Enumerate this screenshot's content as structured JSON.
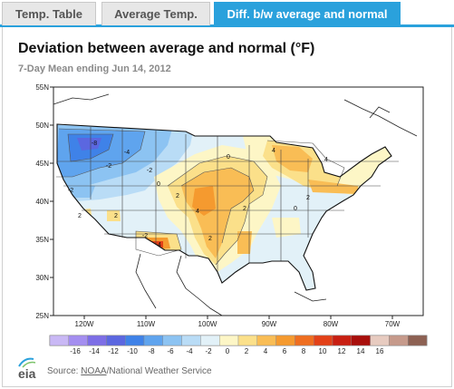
{
  "tabs": [
    {
      "label": "Temp. Table",
      "active": false
    },
    {
      "label": "Average Temp.",
      "active": false
    },
    {
      "label": "Diff. b/w average and normal",
      "active": true
    }
  ],
  "map": {
    "title": "Deviation between average and normal (°F)",
    "subtitle": "7-Day Mean ending Jun 14, 2012",
    "lat_labels": [
      "55N",
      "50N",
      "45N",
      "40N",
      "35N",
      "30N",
      "25N"
    ],
    "lon_labels": [
      "120W",
      "110W",
      "100W",
      "90W",
      "80W",
      "70W"
    ],
    "contour_labels": [
      "-8",
      "-4",
      "-2",
      "-2",
      "0",
      "-2",
      "2",
      "4",
      "4",
      "2",
      "2",
      "2",
      "0",
      "4",
      "2",
      "0",
      "-2",
      "4",
      "2"
    ]
  },
  "legend": {
    "labels": [
      "-16",
      "-14",
      "-12",
      "-10",
      "-8",
      "-6",
      "-4",
      "-2",
      "0",
      "2",
      "4",
      "6",
      "8",
      "10",
      "12",
      "14",
      "16"
    ],
    "colors": [
      "#c9b8f5",
      "#a48ef0",
      "#7d6ee6",
      "#5b67e0",
      "#3f82e8",
      "#5fa4ee",
      "#8cc3f2",
      "#b9dcf6",
      "#e2f1f8",
      "#fdf6c6",
      "#fbe08a",
      "#f9bd55",
      "#f59a2f",
      "#ef6e20",
      "#e34118",
      "#c81f12",
      "#a80f0c",
      "#e7cbc0",
      "#c69a8b",
      "#8d6153"
    ]
  },
  "source": {
    "prefix": "Source: ",
    "link": "NOAA",
    "suffix": "/National Weather Service",
    "logo_text": "eia"
  }
}
